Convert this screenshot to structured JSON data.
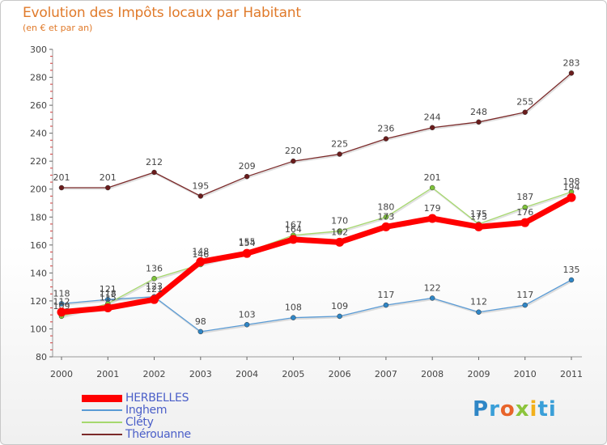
{
  "header": {
    "title": "Evolution des Impôts locaux par Habitant",
    "subtitle": "(en € et par an)"
  },
  "logo": {
    "text": "Proxiti",
    "parts": [
      "P",
      "r",
      "o",
      "x",
      "i",
      "ti"
    ]
  },
  "chart_data": {
    "type": "line",
    "title": "Evolution des Impôts locaux par Habitant",
    "subtitle": "(en € et par an)",
    "xlabel": "",
    "ylabel": "",
    "ylim": [
      80,
      300
    ],
    "yticks": [
      80,
      100,
      120,
      140,
      160,
      180,
      200,
      220,
      240,
      260,
      280,
      300
    ],
    "categories": [
      "2000",
      "2001",
      "2002",
      "2003",
      "2004",
      "2005",
      "2006",
      "2007",
      "2008",
      "2009",
      "2010",
      "2011"
    ],
    "grid": false,
    "legend_position": "bottom-left",
    "series": [
      {
        "name": "Thérouanne",
        "color": "#7b2a2a",
        "marker": "#6a1c1c",
        "values": [
          201,
          201,
          212,
          195,
          209,
          220,
          225,
          236,
          244,
          248,
          255,
          283
        ],
        "labels": [
          "201",
          "201",
          "212",
          "195",
          "209",
          "220",
          "225",
          "236",
          "244",
          "248",
          "255",
          "283"
        ]
      },
      {
        "name": "Inghem",
        "color": "#5a9bd5",
        "marker": "#2f86c6",
        "values": [
          118,
          121,
          123,
          98,
          103,
          108,
          109,
          117,
          122,
          112,
          117,
          135
        ],
        "labels": [
          "118",
          "121",
          "123",
          "98",
          "103",
          "108",
          "109",
          "117",
          "122",
          "112",
          "117",
          "135"
        ]
      },
      {
        "name": "Cléty",
        "color": "#a6d86e",
        "marker": "#7ec23a",
        "values": [
          109,
          118,
          136,
          146,
          155,
          167,
          170,
          180,
          201,
          175,
          187,
          198
        ],
        "labels": [
          "109",
          "118",
          "136",
          "146",
          "155",
          "167",
          "170",
          "180",
          "201",
          "175",
          "187",
          "198"
        ]
      },
      {
        "name": "HERBELLES",
        "color": "#ff0000",
        "marker": "#ff0000",
        "values": [
          112,
          115,
          121,
          148,
          154,
          164,
          162,
          173,
          179,
          173,
          176,
          194
        ],
        "labels": [
          "112",
          "115",
          "121",
          "148",
          "154",
          "164",
          "162",
          "173",
          "179",
          "173",
          "176",
          "194"
        ]
      }
    ],
    "legend": [
      "HERBELLES",
      "Inghem",
      "Cléty",
      "Thérouanne"
    ]
  }
}
